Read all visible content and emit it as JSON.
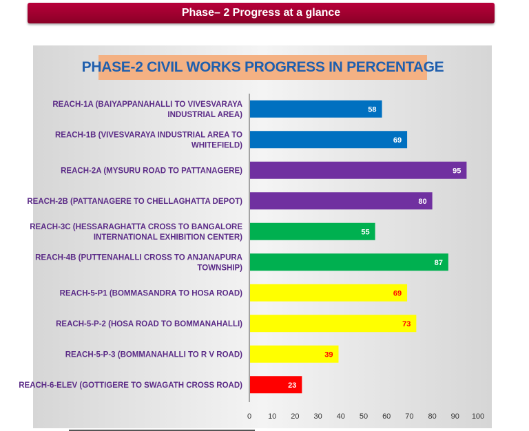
{
  "header": {
    "title": "Phase– 2 Progress at a glance"
  },
  "chart_data": {
    "type": "bar",
    "orientation": "horizontal",
    "title": "PHASE-2 CIVIL WORKS PROGRESS IN PERCENTAGE",
    "xlabel": "",
    "ylabel": "",
    "xlim": [
      0,
      100
    ],
    "ticks": [
      0,
      10,
      20,
      30,
      40,
      50,
      60,
      70,
      80,
      90,
      100
    ],
    "grid": false,
    "categories": [
      [
        "REACH-1A (BAIYAPPANAHALLI  TO  VIVESVARAYA",
        "INDUSTRIAL AREA)"
      ],
      [
        "REACH-1B  (VIVESVARAYA INDUSTRIAL AREA TO",
        "WHITEFIELD)"
      ],
      [
        "REACH-2A  (MYSURU ROAD TO PATTANAGERE)"
      ],
      [
        "REACH-2B (PATTANAGERE  TO  CHELLAGHATTA  DEPOT)"
      ],
      [
        "REACH-3C  (HESSARAGHATTA  CROSS TO BANGALORE",
        "INTERNATIONAL EXHIBITION CENTER)"
      ],
      [
        "REACH-4B  (PUTTENAHALLI CROSS TO  ANJANAPURA",
        "TOWNSHIP)"
      ],
      [
        "REACH-5-P1  (BOMMASANDRA  TO HOSA ROAD)"
      ],
      [
        "REACH-5-P-2  (HOSA ROAD TO BOMMANAHALLI)"
      ],
      [
        "REACH-5-P-3  (BOMMANAHALLI  TO  R V ROAD)"
      ],
      [
        "REACH-6-ELEV  (GOTTIGERE  TO  SWAGATH  CROSS ROAD)"
      ]
    ],
    "values": [
      58,
      69,
      95,
      80,
      55,
      87,
      69,
      73,
      39,
      23
    ],
    "bar_colors": [
      "#0070c0",
      "#0070c0",
      "#7030a0",
      "#7030a0",
      "#00b050",
      "#00b050",
      "#ffff00",
      "#ffff00",
      "#ffff00",
      "#ff0000"
    ],
    "value_label_colors": [
      "#ffffff",
      "#ffffff",
      "#ffffff",
      "#ffffff",
      "#ffffff",
      "#ffffff",
      "#ff0000",
      "#ff0000",
      "#ff0000",
      "#ffffff"
    ],
    "category_label_color": "#5b2b87",
    "title_color": "#1f5fae",
    "title_background": "#f4b183"
  }
}
